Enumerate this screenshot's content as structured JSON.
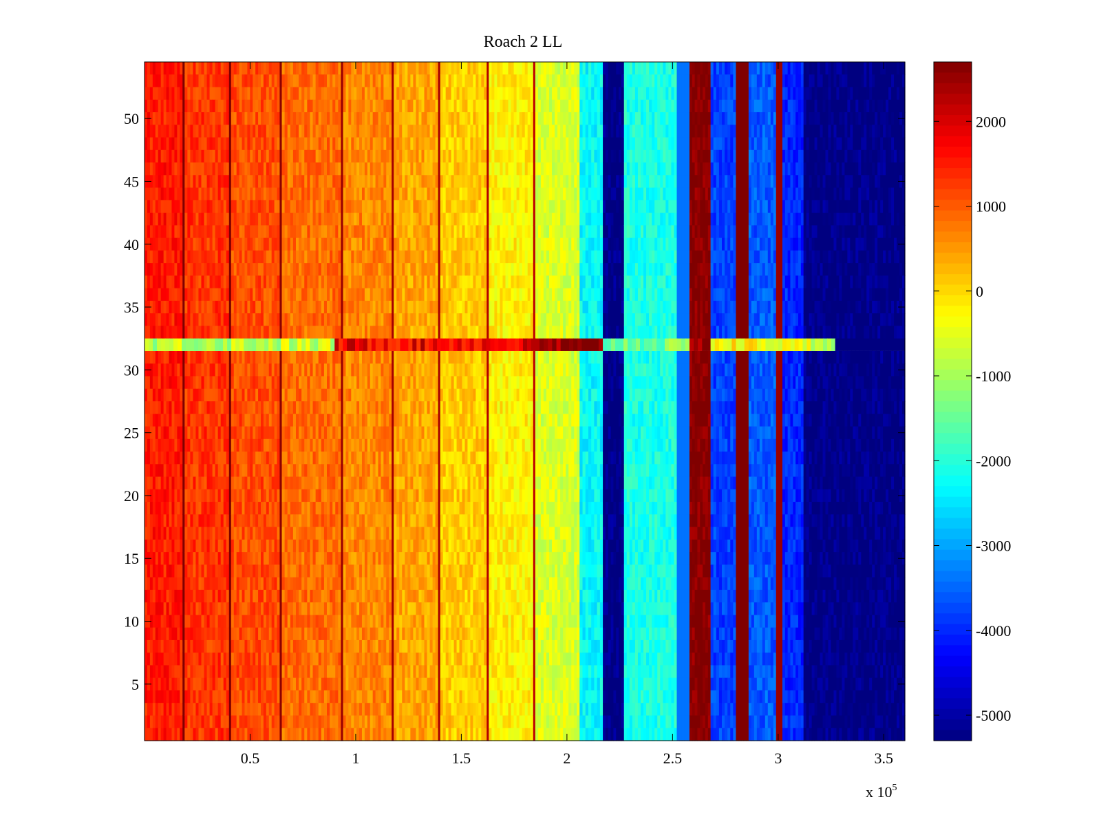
{
  "chart_data": {
    "type": "heatmap",
    "title": "Roach 2 LL",
    "xlabel": "",
    "ylabel": "",
    "x_multiplier_label": "x 10",
    "x_multiplier_exp": "5",
    "xlim": [
      0,
      3.6
    ],
    "ylim": [
      0.5,
      54.5
    ],
    "x_ticks": [
      {
        "value": 0.5,
        "label": "0.5"
      },
      {
        "value": 1.0,
        "label": "1"
      },
      {
        "value": 1.5,
        "label": "1.5"
      },
      {
        "value": 2.0,
        "label": "2"
      },
      {
        "value": 2.5,
        "label": "2.5"
      },
      {
        "value": 3.0,
        "label": "3"
      },
      {
        "value": 3.5,
        "label": "3.5"
      }
    ],
    "y_ticks": [
      {
        "value": 5,
        "label": "5"
      },
      {
        "value": 10,
        "label": "10"
      },
      {
        "value": 15,
        "label": "15"
      },
      {
        "value": 20,
        "label": "20"
      },
      {
        "value": 25,
        "label": "25"
      },
      {
        "value": 30,
        "label": "30"
      },
      {
        "value": 35,
        "label": "35"
      },
      {
        "value": 40,
        "label": "40"
      },
      {
        "value": 45,
        "label": "45"
      },
      {
        "value": 50,
        "label": "50"
      }
    ],
    "colorbar": {
      "colormap": "jet",
      "clim": [
        -5300,
        2700
      ],
      "ticks": [
        {
          "value": 2000,
          "label": "2000"
        },
        {
          "value": 1000,
          "label": "1000"
        },
        {
          "value": 0,
          "label": "0"
        },
        {
          "value": -1000,
          "label": "-1000"
        },
        {
          "value": -2000,
          "label": "-2000"
        },
        {
          "value": -3000,
          "label": "-3000"
        },
        {
          "value": -4000,
          "label": "-4000"
        },
        {
          "value": -5000,
          "label": "-5000"
        }
      ]
    },
    "rows": 54,
    "column_profile": [
      {
        "x_start": 0.0,
        "x_end": 0.18,
        "value": 1500
      },
      {
        "x_start": 0.18,
        "x_end": 0.19,
        "value": 2700
      },
      {
        "x_start": 0.19,
        "x_end": 0.4,
        "value": 1300
      },
      {
        "x_start": 0.4,
        "x_end": 0.41,
        "value": 2700
      },
      {
        "x_start": 0.41,
        "x_end": 0.64,
        "value": 1100
      },
      {
        "x_start": 0.64,
        "x_end": 0.65,
        "value": 2600
      },
      {
        "x_start": 0.65,
        "x_end": 0.93,
        "value": 850
      },
      {
        "x_start": 0.93,
        "x_end": 0.94,
        "value": 2500
      },
      {
        "x_start": 0.94,
        "x_end": 1.17,
        "value": 650
      },
      {
        "x_start": 1.17,
        "x_end": 1.18,
        "value": 2400
      },
      {
        "x_start": 1.18,
        "x_end": 1.39,
        "value": 400
      },
      {
        "x_start": 1.39,
        "x_end": 1.4,
        "value": 2400
      },
      {
        "x_start": 1.4,
        "x_end": 1.62,
        "value": 100
      },
      {
        "x_start": 1.62,
        "x_end": 1.63,
        "value": 2300
      },
      {
        "x_start": 1.63,
        "x_end": 1.84,
        "value": -200
      },
      {
        "x_start": 1.84,
        "x_end": 1.85,
        "value": 2200
      },
      {
        "x_start": 1.85,
        "x_end": 2.06,
        "value": -600
      },
      {
        "x_start": 2.06,
        "x_end": 2.17,
        "value": -2300
      },
      {
        "x_start": 2.17,
        "x_end": 2.27,
        "value": -5300
      },
      {
        "x_start": 2.27,
        "x_end": 2.52,
        "value": -2100
      },
      {
        "x_start": 2.52,
        "x_end": 2.58,
        "value": -3400
      },
      {
        "x_start": 2.58,
        "x_end": 2.68,
        "value": 2700
      },
      {
        "x_start": 2.68,
        "x_end": 2.8,
        "value": -3800
      },
      {
        "x_start": 2.8,
        "x_end": 2.86,
        "value": 2700
      },
      {
        "x_start": 2.86,
        "x_end": 2.99,
        "value": -3600
      },
      {
        "x_start": 2.99,
        "x_end": 3.02,
        "value": 2500
      },
      {
        "x_start": 3.02,
        "x_end": 3.12,
        "value": -4000
      },
      {
        "x_start": 3.12,
        "x_end": 3.6,
        "value": -5300
      }
    ],
    "anomalous_row": {
      "row": 32,
      "segments": [
        {
          "x_start": 0.0,
          "x_end": 0.9,
          "value": -800
        },
        {
          "x_start": 0.9,
          "x_end": 1.85,
          "value": 1800
        },
        {
          "x_start": 1.85,
          "x_end": 2.17,
          "value": 2400
        },
        {
          "x_start": 2.17,
          "x_end": 2.58,
          "value": -1400
        },
        {
          "x_start": 2.58,
          "x_end": 2.68,
          "value": 2700
        },
        {
          "x_start": 2.68,
          "x_end": 3.02,
          "value": -300
        },
        {
          "x_start": 3.02,
          "x_end": 3.27,
          "value": -600
        },
        {
          "x_start": 3.27,
          "x_end": 3.6,
          "value": -5300
        }
      ]
    },
    "grid": false
  }
}
